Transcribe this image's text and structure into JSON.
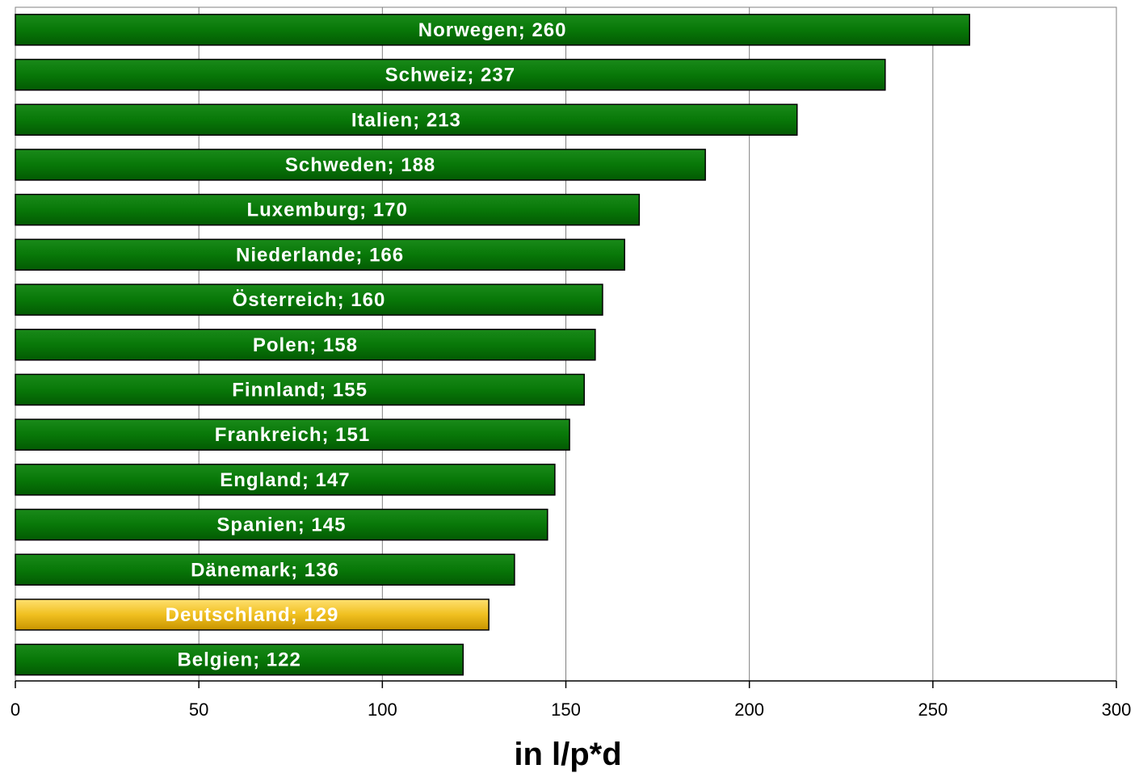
{
  "chart_data": {
    "type": "bar",
    "orientation": "horizontal",
    "categories": [
      "Norwegen",
      "Schweiz",
      "Italien",
      "Schweden",
      "Luxemburg",
      "Niederlande",
      "Österreich",
      "Polen",
      "Finnland",
      "Frankreich",
      "England",
      "Spanien",
      "Dänemark",
      "Deutschland",
      "Belgien"
    ],
    "values": [
      260,
      237,
      213,
      188,
      170,
      166,
      160,
      158,
      155,
      151,
      147,
      145,
      136,
      129,
      122
    ],
    "bar_labels": [
      "Norwegen; 260",
      "Schweiz; 237",
      "Italien; 213",
      "Schweden; 188",
      "Luxemburg; 170",
      "Niederlande; 166",
      "Österreich; 160",
      "Polen; 158",
      "Finnland; 155",
      "Frankreich; 151",
      "England; 147",
      "Spanien; 145",
      "Dänemark; 136",
      "Deutschland; 129",
      "Belgien; 122"
    ],
    "highlight": "Deutschland",
    "xlabel": "in l/p*d",
    "ylabel": "",
    "xlim": [
      0,
      300
    ],
    "xticks": [
      0,
      50,
      100,
      150,
      200,
      250,
      300
    ],
    "xtick_labels": [
      "0",
      "50",
      "100",
      "150",
      "200",
      "250",
      "300"
    ],
    "grid": "vertical",
    "legend": "none",
    "colors": {
      "bar": "#087808",
      "bar_dark": "#035a03",
      "bar_light": "#1a8a1a",
      "highlight": "#f0c020",
      "highlight_dark": "#c89400",
      "highlight_light": "#ffe070",
      "grid": "#808080",
      "label": "#ffffff"
    }
  }
}
